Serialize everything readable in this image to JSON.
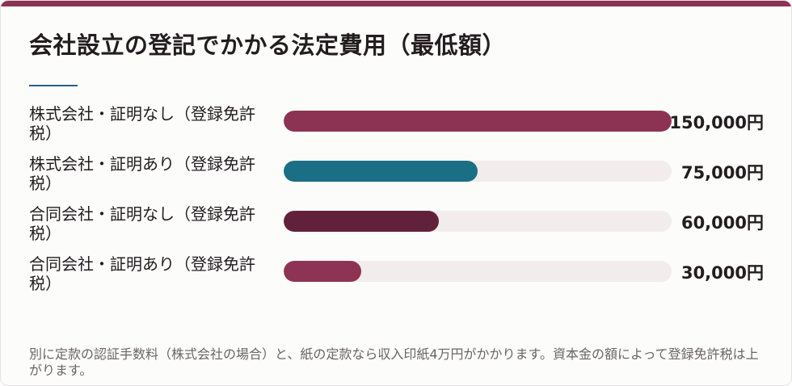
{
  "title": "会社設立の登記でかかる法定費用（最低額）",
  "colors": {
    "top_strip": "#8c3353",
    "accent_line": "#2a5f88",
    "track": "#f2eced"
  },
  "chart_data": {
    "type": "bar",
    "orientation": "horizontal",
    "xlim": [
      0,
      150000
    ],
    "grid": false,
    "legend": "none",
    "categories": [
      "株式会社・証明なし（登録免許税）",
      "株式会社・証明あり（登録免許税）",
      "合同会社・証明なし（登録免許税）",
      "合同会社・証明あり（登録免許税）"
    ],
    "values": [
      150000,
      75000,
      60000,
      30000
    ],
    "value_labels": [
      "150,000円",
      "75,000円",
      "60,000円",
      "30,000円"
    ],
    "bar_colors": [
      "#8c3353",
      "#1b6f85",
      "#62213b",
      "#8e3354"
    ]
  },
  "footnote": "別に定款の認証手数料（株式会社の場合）と、紙の定款なら収入印紙4万円がかかります。資本金の額によって登録免許税は上がります。"
}
